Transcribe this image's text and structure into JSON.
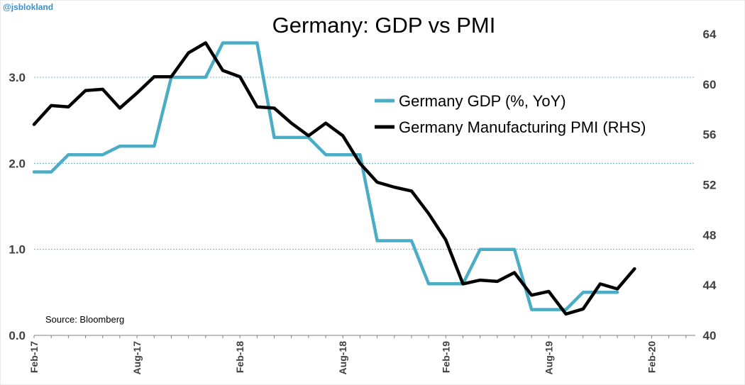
{
  "chart_data": {
    "type": "line",
    "title": "Germany: GDP vs PMI",
    "handle": "@jsblokland",
    "source": "Source: Bloomberg",
    "colors": {
      "gdp": "#4bacc6",
      "pmi": "#000000",
      "grid": "#4aa3c9"
    },
    "x_start": "2017-02",
    "x_ticks": [
      "Feb-17",
      "Aug-17",
      "Feb-18",
      "Aug-18",
      "Feb-19",
      "Aug-19",
      "Feb-20"
    ],
    "y_left": {
      "ticks": [
        "0.0",
        "1.0",
        "2.0",
        "3.0"
      ],
      "ylim": [
        0,
        3.5
      ]
    },
    "y_right": {
      "ticks": [
        "40",
        "44",
        "48",
        "52",
        "56",
        "60",
        "64"
      ],
      "ylim": [
        40,
        64
      ]
    },
    "series": [
      {
        "name": "Germany GDP (%, YoY)",
        "axis": "left",
        "months": [
          "2017-02",
          "2017-03",
          "2017-04",
          "2017-05",
          "2017-06",
          "2017-07",
          "2017-08",
          "2017-09",
          "2017-10",
          "2017-11",
          "2017-12",
          "2018-01",
          "2018-02",
          "2018-03",
          "2018-04",
          "2018-05",
          "2018-06",
          "2018-07",
          "2018-08",
          "2018-09",
          "2018-10",
          "2018-11",
          "2018-12",
          "2019-01",
          "2019-02",
          "2019-03",
          "2019-04",
          "2019-05",
          "2019-06",
          "2019-07",
          "2019-08",
          "2019-09",
          "2019-10",
          "2019-11",
          "2019-12"
        ],
        "values": [
          1.9,
          1.9,
          2.1,
          2.1,
          2.1,
          2.2,
          2.2,
          2.2,
          3.0,
          3.0,
          3.0,
          3.4,
          3.4,
          3.4,
          2.3,
          2.3,
          2.3,
          2.1,
          2.1,
          2.1,
          1.1,
          1.1,
          1.1,
          0.6,
          0.6,
          0.6,
          1.0,
          1.0,
          1.0,
          0.3,
          0.3,
          0.3,
          0.5,
          0.5,
          0.5
        ]
      },
      {
        "name": "Germany Manufacturing PMI (RHS)",
        "axis": "right",
        "months": [
          "2017-02",
          "2017-03",
          "2017-04",
          "2017-05",
          "2017-06",
          "2017-07",
          "2017-08",
          "2017-09",
          "2017-10",
          "2017-11",
          "2017-12",
          "2018-01",
          "2018-02",
          "2018-03",
          "2018-04",
          "2018-05",
          "2018-06",
          "2018-07",
          "2018-08",
          "2018-09",
          "2018-10",
          "2018-11",
          "2018-12",
          "2019-01",
          "2019-02",
          "2019-03",
          "2019-04",
          "2019-05",
          "2019-06",
          "2019-07",
          "2019-08",
          "2019-09",
          "2019-10",
          "2019-11",
          "2019-12",
          "2020-01"
        ],
        "values": [
          56.8,
          58.3,
          58.2,
          59.5,
          59.6,
          58.1,
          59.3,
          60.6,
          60.6,
          62.5,
          63.3,
          61.1,
          60.6,
          58.2,
          58.1,
          56.9,
          55.9,
          56.9,
          55.9,
          53.7,
          52.2,
          51.8,
          51.5,
          49.7,
          47.6,
          44.1,
          44.4,
          44.3,
          45.0,
          43.2,
          43.5,
          41.7,
          42.1,
          44.1,
          43.7,
          45.3
        ]
      }
    ]
  }
}
